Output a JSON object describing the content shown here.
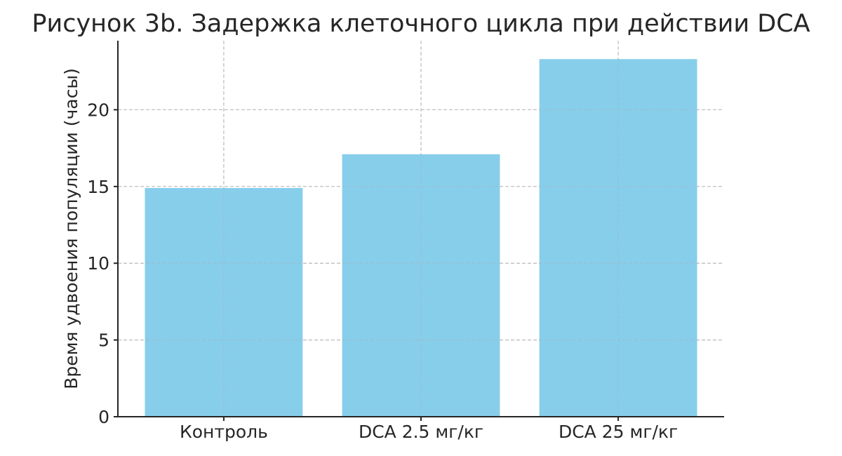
{
  "chart_data": {
    "type": "bar",
    "title": "Рисунок 3b. Задержка клеточного цикла при действии DCA",
    "xlabel": "",
    "ylabel": "Время удвоения популяции (часы)",
    "categories": [
      "Контроль",
      "DCA 2.5 мг/кг",
      "DCA 25 мг/кг"
    ],
    "values": [
      14.9,
      17.1,
      23.3
    ],
    "ylim": [
      0,
      24.5
    ],
    "yticks": [
      0,
      5,
      10,
      15,
      20
    ],
    "grid": true,
    "bar_color": "#87CEEB"
  }
}
